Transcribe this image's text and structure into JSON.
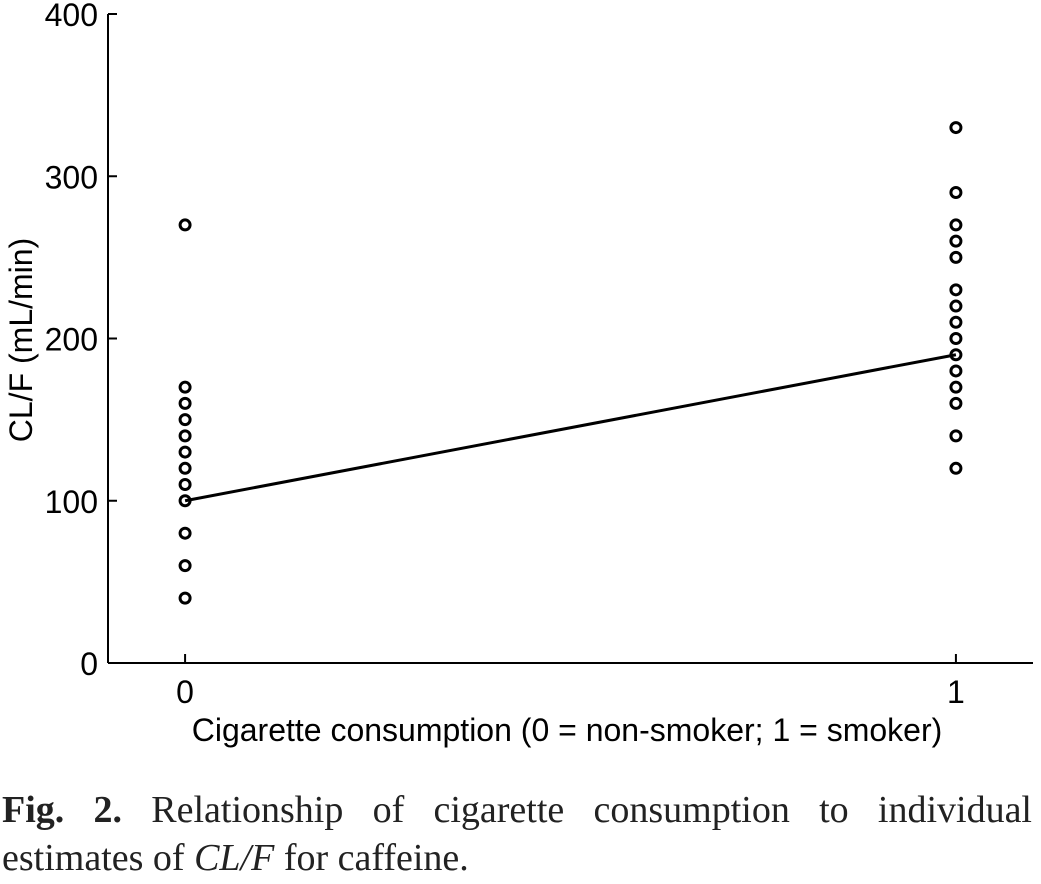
{
  "chart_data": {
    "type": "scatter",
    "xlabel": "Cigarette consumption (0 = non-smoker; 1 = smoker)",
    "ylabel": "CL/F (mL/min)",
    "xlim": [
      -0.1,
      1.1
    ],
    "ylim": [
      0,
      400
    ],
    "x_ticks": [
      0,
      1
    ],
    "y_ticks": [
      0,
      100,
      200,
      300,
      400
    ],
    "grid": false,
    "points": [
      {
        "x": 0,
        "y": 270
      },
      {
        "x": 0,
        "y": 170
      },
      {
        "x": 0,
        "y": 160
      },
      {
        "x": 0,
        "y": 150
      },
      {
        "x": 0,
        "y": 140
      },
      {
        "x": 0,
        "y": 130
      },
      {
        "x": 0,
        "y": 120
      },
      {
        "x": 0,
        "y": 110
      },
      {
        "x": 0,
        "y": 100
      },
      {
        "x": 0,
        "y": 80
      },
      {
        "x": 0,
        "y": 60
      },
      {
        "x": 0,
        "y": 40
      },
      {
        "x": 1,
        "y": 330
      },
      {
        "x": 1,
        "y": 290
      },
      {
        "x": 1,
        "y": 270
      },
      {
        "x": 1,
        "y": 260
      },
      {
        "x": 1,
        "y": 250
      },
      {
        "x": 1,
        "y": 230
      },
      {
        "x": 1,
        "y": 220
      },
      {
        "x": 1,
        "y": 210
      },
      {
        "x": 1,
        "y": 200
      },
      {
        "x": 1,
        "y": 190
      },
      {
        "x": 1,
        "y": 180
      },
      {
        "x": 1,
        "y": 170
      },
      {
        "x": 1,
        "y": 160
      },
      {
        "x": 1,
        "y": 140
      },
      {
        "x": 1,
        "y": 120
      }
    ],
    "fit_line": {
      "x": [
        0,
        1
      ],
      "y": [
        100,
        190
      ]
    }
  },
  "caption": {
    "label": "Fig. 2.",
    "text_before": " Relationship of cigarette consumption to individual estimates of ",
    "italic": "CL/F",
    "text_after": " for caffeine."
  }
}
